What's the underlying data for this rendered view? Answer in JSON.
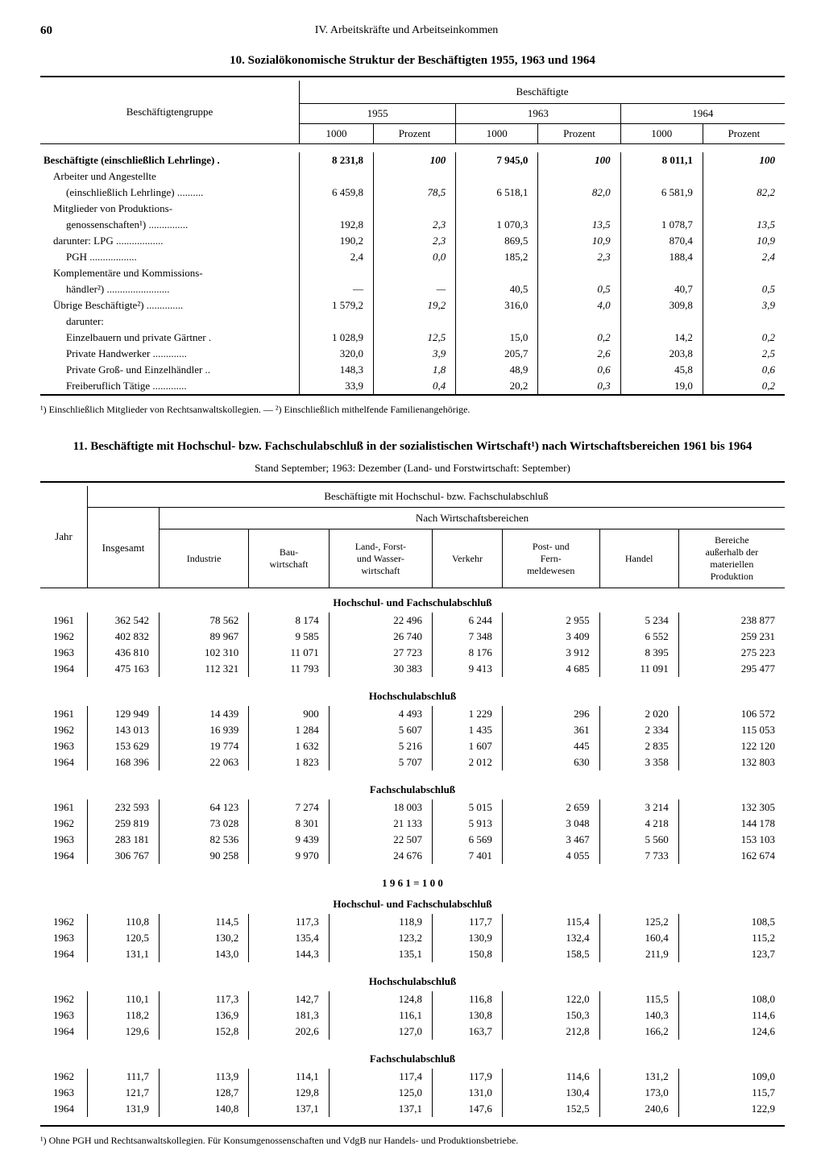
{
  "page_number": "60",
  "section_header": "IV. Arbeitskräfte und Arbeitseinkommen",
  "table10": {
    "title": "10. Sozialökonomische Struktur der Beschäftigten 1955, 1963 und 1964",
    "col_group": "Beschäftigtengruppe",
    "col_top": "Beschäftigte",
    "years": [
      "1955",
      "1963",
      "1964"
    ],
    "sub_1000": "1000",
    "sub_pct": "Prozent",
    "rows": [
      {
        "label": "Beschäftigte (einschließlich Lehrlinge) .",
        "bold": true,
        "indent": 0,
        "v": [
          "8 231,8",
          "100",
          "7 945,0",
          "100",
          "8 011,1",
          "100"
        ],
        "boldv": true
      },
      {
        "label": "Arbeiter und Angestellte",
        "indent": 1,
        "nov": true
      },
      {
        "label": "(einschließlich Lehrlinge) ..........",
        "indent": 2,
        "v": [
          "6 459,8",
          "78,5",
          "6 518,1",
          "82,0",
          "6 581,9",
          "82,2"
        ]
      },
      {
        "label": "Mitglieder von Produktions-",
        "indent": 1,
        "nov": true
      },
      {
        "label": "genossenschaften¹) ...............",
        "indent": 2,
        "v": [
          "192,8",
          "2,3",
          "1 070,3",
          "13,5",
          "1 078,7",
          "13,5"
        ]
      },
      {
        "label": "darunter: LPG ..................",
        "indent": 1,
        "v": [
          "190,2",
          "2,3",
          "869,5",
          "10,9",
          "870,4",
          "10,9"
        ]
      },
      {
        "label": "PGH ..................",
        "indent": 2,
        "v": [
          "2,4",
          "0,0",
          "185,2",
          "2,3",
          "188,4",
          "2,4"
        ]
      },
      {
        "label": "Komplementäre und Kommissions-",
        "indent": 1,
        "nov": true
      },
      {
        "label": "händler²) ........................",
        "indent": 2,
        "v": [
          "—",
          "—",
          "40,5",
          "0,5",
          "40,7",
          "0,5"
        ]
      },
      {
        "label": "Übrige Beschäftigte²) ..............",
        "indent": 1,
        "v": [
          "1 579,2",
          "19,2",
          "316,0",
          "4,0",
          "309,8",
          "3,9"
        ]
      },
      {
        "label": "darunter:",
        "indent": 2,
        "nov": true
      },
      {
        "label": "Einzelbauern und private Gärtner .",
        "indent": 2,
        "v": [
          "1 028,9",
          "12,5",
          "15,0",
          "0,2",
          "14,2",
          "0,2"
        ]
      },
      {
        "label": "Private Handwerker .............",
        "indent": 2,
        "v": [
          "320,0",
          "3,9",
          "205,7",
          "2,6",
          "203,8",
          "2,5"
        ]
      },
      {
        "label": "Private Groß- und Einzelhändler ..",
        "indent": 2,
        "v": [
          "148,3",
          "1,8",
          "48,9",
          "0,6",
          "45,8",
          "0,6"
        ]
      },
      {
        "label": "Freiberuflich Tätige .............",
        "indent": 2,
        "v": [
          "33,9",
          "0,4",
          "20,2",
          "0,3",
          "19,0",
          "0,2"
        ]
      }
    ],
    "footnote": "¹) Einschließlich Mitglieder von Rechtsanwaltskollegien. — ²) Einschließlich mithelfende Familienangehörige."
  },
  "table11": {
    "title": "11. Beschäftigte mit Hochschul- bzw. Fachschulabschluß in der sozialistischen Wirtschaft¹) nach Wirtschaftsbereichen 1961 bis 1964",
    "subtitle": "Stand September; 1963: Dezember (Land- und Forstwirtschaft: September)",
    "head_top": "Beschäftigte mit Hochschul- bzw. Fachschulabschluß",
    "head_sub": "Nach Wirtschaftsbereichen",
    "col_jahr": "Jahr",
    "col_insg": "Insgesamt",
    "cols": [
      "Industrie",
      "Bau-\nwirtschaft",
      "Land-, Forst-\nund Wasser-\nwirtschaft",
      "Verkehr",
      "Post- und\nFern-\nmeldewesen",
      "Handel",
      "Bereiche\naußerhalb der\nmateriellen\nProduktion"
    ],
    "sections": [
      {
        "head": "Hochschul- und Fachschulabschluß",
        "rows": [
          [
            "1961",
            "362 542",
            "78 562",
            "8 174",
            "22 496",
            "6 244",
            "2 955",
            "5 234",
            "238 877"
          ],
          [
            "1962",
            "402 832",
            "89 967",
            "9 585",
            "26 740",
            "7 348",
            "3 409",
            "6 552",
            "259 231"
          ],
          [
            "1963",
            "436 810",
            "102 310",
            "11 071",
            "27 723",
            "8 176",
            "3 912",
            "8 395",
            "275 223"
          ],
          [
            "1964",
            "475 163",
            "112 321",
            "11 793",
            "30 383",
            "9 413",
            "4 685",
            "11 091",
            "295 477"
          ]
        ]
      },
      {
        "head": "Hochschulabschluß",
        "rows": [
          [
            "1961",
            "129 949",
            "14 439",
            "900",
            "4 493",
            "1 229",
            "296",
            "2 020",
            "106 572"
          ],
          [
            "1962",
            "143 013",
            "16 939",
            "1 284",
            "5 607",
            "1 435",
            "361",
            "2 334",
            "115 053"
          ],
          [
            "1963",
            "153 629",
            "19 774",
            "1 632",
            "5 216",
            "1 607",
            "445",
            "2 835",
            "122 120"
          ],
          [
            "1964",
            "168 396",
            "22 063",
            "1 823",
            "5 707",
            "2 012",
            "630",
            "3 358",
            "132 803"
          ]
        ]
      },
      {
        "head": "Fachschulabschluß",
        "rows": [
          [
            "1961",
            "232 593",
            "64 123",
            "7 274",
            "18 003",
            "5 015",
            "2 659",
            "3 214",
            "132 305"
          ],
          [
            "1962",
            "259 819",
            "73 028",
            "8 301",
            "21 133",
            "5 913",
            "3 048",
            "4 218",
            "144 178"
          ],
          [
            "1963",
            "283 181",
            "82 536",
            "9 439",
            "22 507",
            "6 569",
            "3 467",
            "5 560",
            "153 103"
          ],
          [
            "1964",
            "306 767",
            "90 258",
            "9 970",
            "24 676",
            "7 401",
            "4 055",
            "7 733",
            "162 674"
          ]
        ]
      }
    ],
    "index_head": "1 9 6 1 = 1 0 0",
    "index_sections": [
      {
        "head": "Hochschul- und Fachschulabschluß",
        "rows": [
          [
            "1962",
            "110,8",
            "114,5",
            "117,3",
            "118,9",
            "117,7",
            "115,4",
            "125,2",
            "108,5"
          ],
          [
            "1963",
            "120,5",
            "130,2",
            "135,4",
            "123,2",
            "130,9",
            "132,4",
            "160,4",
            "115,2"
          ],
          [
            "1964",
            "131,1",
            "143,0",
            "144,3",
            "135,1",
            "150,8",
            "158,5",
            "211,9",
            "123,7"
          ]
        ]
      },
      {
        "head": "Hochschulabschluß",
        "rows": [
          [
            "1962",
            "110,1",
            "117,3",
            "142,7",
            "124,8",
            "116,8",
            "122,0",
            "115,5",
            "108,0"
          ],
          [
            "1963",
            "118,2",
            "136,9",
            "181,3",
            "116,1",
            "130,8",
            "150,3",
            "140,3",
            "114,6"
          ],
          [
            "1964",
            "129,6",
            "152,8",
            "202,6",
            "127,0",
            "163,7",
            "212,8",
            "166,2",
            "124,6"
          ]
        ]
      },
      {
        "head": "Fachschulabschluß",
        "rows": [
          [
            "1962",
            "111,7",
            "113,9",
            "114,1",
            "117,4",
            "117,9",
            "114,6",
            "131,2",
            "109,0"
          ],
          [
            "1963",
            "121,7",
            "128,7",
            "129,8",
            "125,0",
            "131,0",
            "130,4",
            "173,0",
            "115,7"
          ],
          [
            "1964",
            "131,9",
            "140,8",
            "137,1",
            "137,1",
            "147,6",
            "152,5",
            "240,6",
            "122,9"
          ]
        ]
      }
    ],
    "footnote": "¹) Ohne PGH und Rechtsanwaltskollegien. Für Konsumgenossenschaften und VdgB nur Handels- und Produktionsbetriebe."
  }
}
